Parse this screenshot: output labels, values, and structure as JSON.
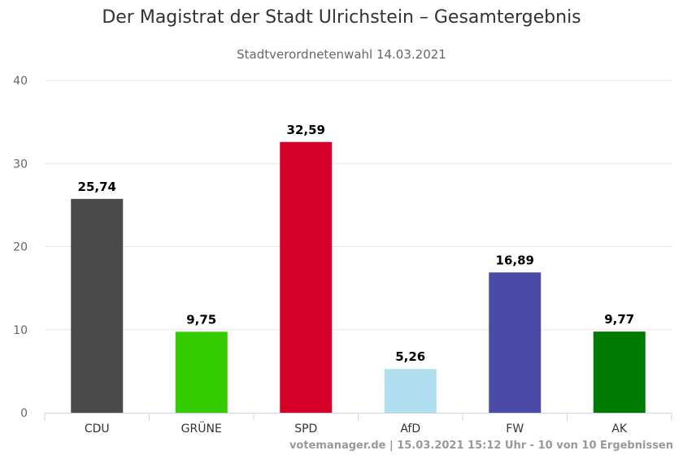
{
  "chart_data": {
    "type": "bar",
    "title": "Der Magistrat der Stadt Ulrichstein – Gesamtergebnis",
    "subtitle": "Stadtverordnetenwahl 14.03.2021",
    "xlabel": "",
    "ylabel": "",
    "ylim": [
      0,
      40
    ],
    "yticks": [
      0,
      10,
      20,
      30,
      40
    ],
    "grid": true,
    "categories": [
      "CDU",
      "GRÜNE",
      "SPD",
      "AfD",
      "FW",
      "AK"
    ],
    "values": [
      25.74,
      9.75,
      32.59,
      5.26,
      16.89,
      9.77
    ],
    "value_labels": [
      "25,74",
      "9,75",
      "32,59",
      "5,26",
      "16,89",
      "9,77"
    ],
    "colors": [
      "#4a4a4a",
      "#33cc00",
      "#d4002a",
      "#b0dff0",
      "#4a4ba6",
      "#007a00"
    ]
  },
  "credit": "votemanager.de | 15.03.2021 15:12 Uhr - 10 von 10 Ergebnissen"
}
